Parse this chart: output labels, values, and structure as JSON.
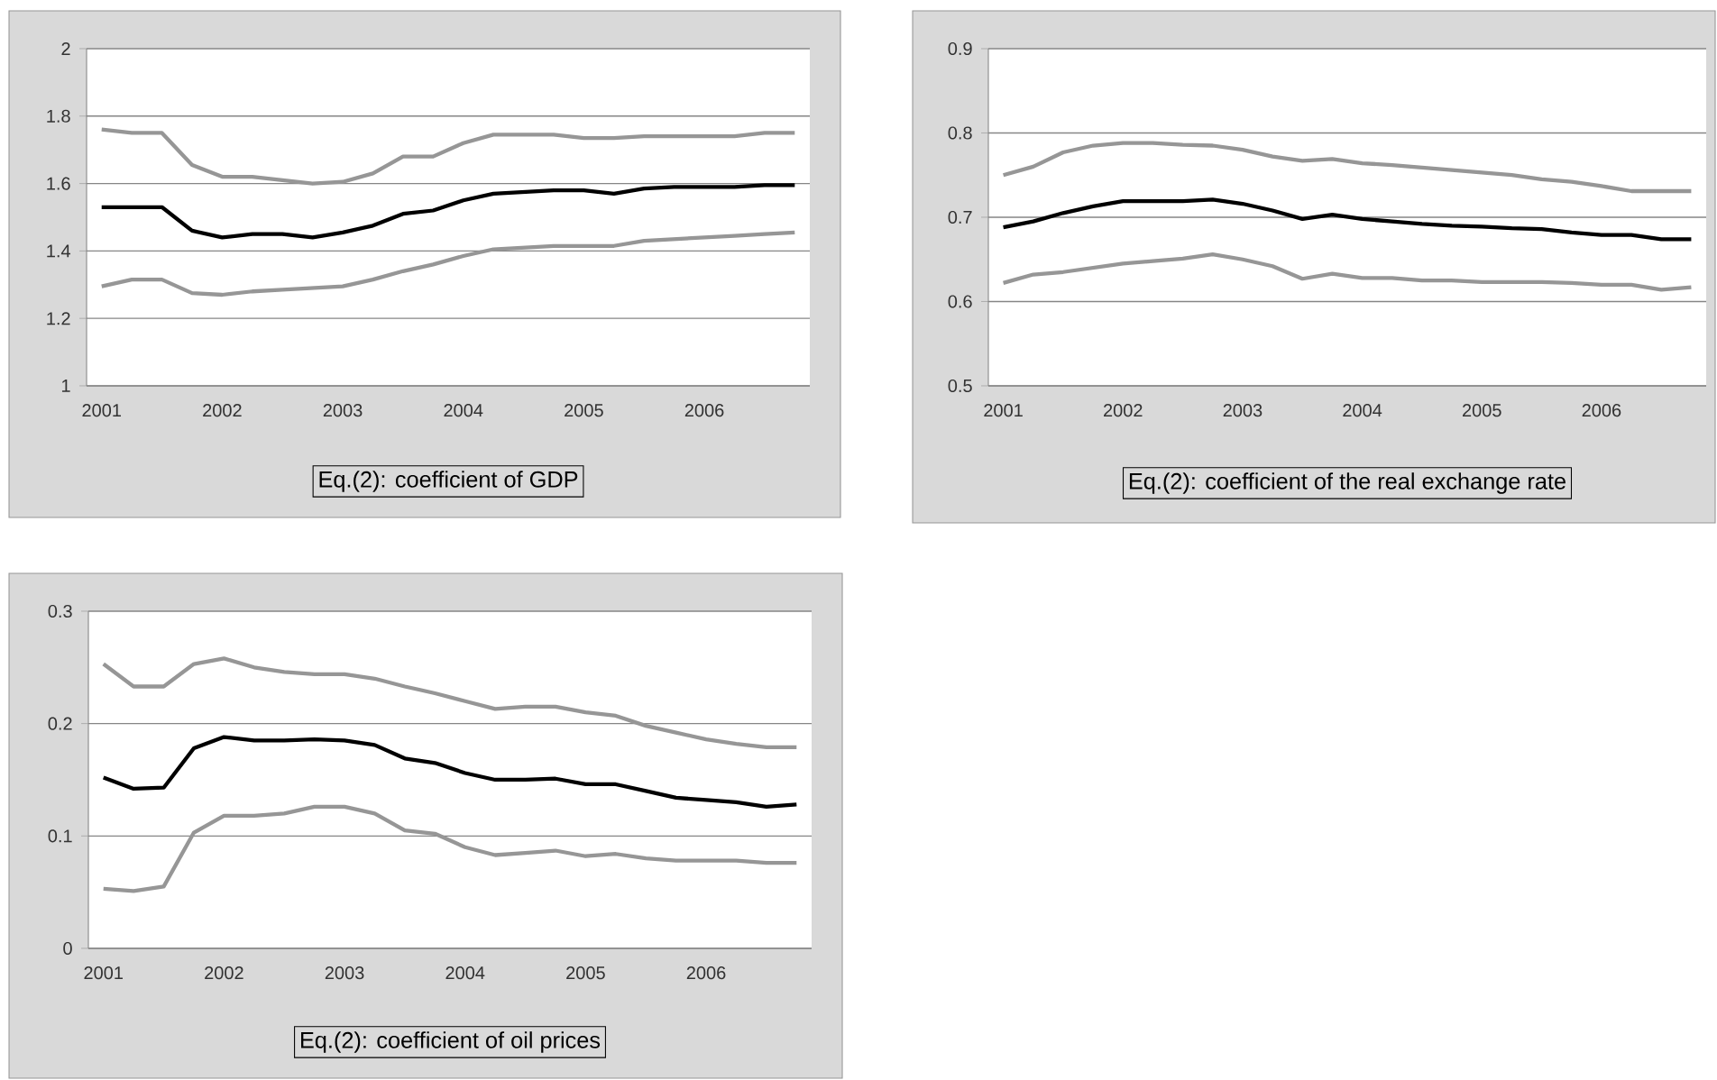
{
  "chart_data": [
    {
      "type": "line",
      "categories": [
        "2001",
        null,
        null,
        null,
        "2002",
        null,
        null,
        null,
        "2003",
        null,
        null,
        null,
        "2004",
        null,
        null,
        null,
        "2005",
        null,
        null,
        null,
        "2006",
        null,
        null,
        null
      ],
      "series": [
        {
          "color": "#969696",
          "values": [
            1.76,
            1.75,
            1.75,
            1.655,
            1.62,
            1.62,
            1.61,
            1.6,
            1.605,
            1.63,
            1.68,
            1.68,
            1.72,
            1.745,
            1.745,
            1.745,
            1.735,
            1.735,
            1.74,
            1.74,
            1.74,
            1.74,
            1.75,
            1.75
          ]
        },
        {
          "color": "#000000",
          "values": [
            1.53,
            1.53,
            1.53,
            1.46,
            1.44,
            1.45,
            1.45,
            1.44,
            1.455,
            1.475,
            1.51,
            1.52,
            1.55,
            1.57,
            1.575,
            1.58,
            1.58,
            1.57,
            1.585,
            1.59,
            1.59,
            1.59,
            1.595,
            1.595
          ]
        },
        {
          "color": "#969696",
          "values": [
            1.295,
            1.315,
            1.315,
            1.275,
            1.27,
            1.28,
            1.285,
            1.29,
            1.295,
            1.315,
            1.34,
            1.36,
            1.385,
            1.405,
            1.41,
            1.415,
            1.415,
            1.415,
            1.43,
            1.435,
            1.44,
            1.445,
            1.45,
            1.455
          ]
        }
      ],
      "ylim": [
        1,
        2
      ],
      "yticks": [
        1,
        1.2,
        1.4,
        1.6,
        1.8,
        2
      ],
      "grid": "y",
      "xlabel": "Eq.(2): coefficient of GDP"
    },
    {
      "type": "line",
      "categories": [
        "2001",
        null,
        null,
        null,
        "2002",
        null,
        null,
        null,
        "2003",
        null,
        null,
        null,
        "2004",
        null,
        null,
        null,
        "2005",
        null,
        null,
        null,
        "2006",
        null,
        null,
        null
      ],
      "series": [
        {
          "color": "#969696",
          "values": [
            0.75,
            0.76,
            0.777,
            0.785,
            0.788,
            0.788,
            0.786,
            0.785,
            0.78,
            0.772,
            0.767,
            0.769,
            0.764,
            0.762,
            0.759,
            0.756,
            0.753,
            0.75,
            0.745,
            0.742,
            0.737,
            0.731,
            0.731,
            0.731
          ]
        },
        {
          "color": "#000000",
          "values": [
            0.688,
            0.695,
            0.705,
            0.713,
            0.719,
            0.719,
            0.719,
            0.721,
            0.716,
            0.708,
            0.698,
            0.703,
            0.698,
            0.695,
            0.692,
            0.69,
            0.689,
            0.687,
            0.686,
            0.682,
            0.679,
            0.679,
            0.674,
            0.674
          ]
        },
        {
          "color": "#969696",
          "values": [
            0.622,
            0.632,
            0.635,
            0.64,
            0.645,
            0.648,
            0.651,
            0.656,
            0.65,
            0.642,
            0.627,
            0.633,
            0.628,
            0.628,
            0.625,
            0.625,
            0.623,
            0.623,
            0.623,
            0.622,
            0.62,
            0.62,
            0.614,
            0.617
          ]
        }
      ],
      "ylim": [
        0.5,
        0.9
      ],
      "yticks": [
        0.5,
        0.6,
        0.7,
        0.8,
        0.9
      ],
      "grid": "y",
      "xlabel": "Eq.(2): coefficient of the real exchange rate"
    },
    {
      "type": "line",
      "categories": [
        "2001",
        null,
        null,
        null,
        "2002",
        null,
        null,
        null,
        "2003",
        null,
        null,
        null,
        "2004",
        null,
        null,
        null,
        "2005",
        null,
        null,
        null,
        "2006",
        null,
        null,
        null
      ],
      "series": [
        {
          "color": "#969696",
          "values": [
            0.253,
            0.233,
            0.233,
            0.253,
            0.258,
            0.25,
            0.246,
            0.244,
            0.244,
            0.24,
            0.233,
            0.227,
            0.22,
            0.213,
            0.215,
            0.215,
            0.21,
            0.207,
            0.198,
            0.192,
            0.186,
            0.182,
            0.179,
            0.179
          ]
        },
        {
          "color": "#000000",
          "values": [
            0.152,
            0.142,
            0.143,
            0.178,
            0.188,
            0.185,
            0.185,
            0.186,
            0.185,
            0.181,
            0.169,
            0.165,
            0.156,
            0.15,
            0.15,
            0.151,
            0.146,
            0.146,
            0.14,
            0.134,
            0.132,
            0.13,
            0.126,
            0.128
          ]
        },
        {
          "color": "#969696",
          "values": [
            0.053,
            0.051,
            0.055,
            0.103,
            0.118,
            0.118,
            0.12,
            0.126,
            0.126,
            0.12,
            0.105,
            0.102,
            0.09,
            0.083,
            0.085,
            0.087,
            0.082,
            0.084,
            0.08,
            0.078,
            0.078,
            0.078,
            0.076,
            0.076
          ]
        }
      ],
      "ylim": [
        0,
        0.3
      ],
      "yticks": [
        0,
        0.1,
        0.2,
        0.3
      ],
      "grid": "y",
      "xlabel": "Eq.(2): coefficient of oil prices"
    }
  ]
}
